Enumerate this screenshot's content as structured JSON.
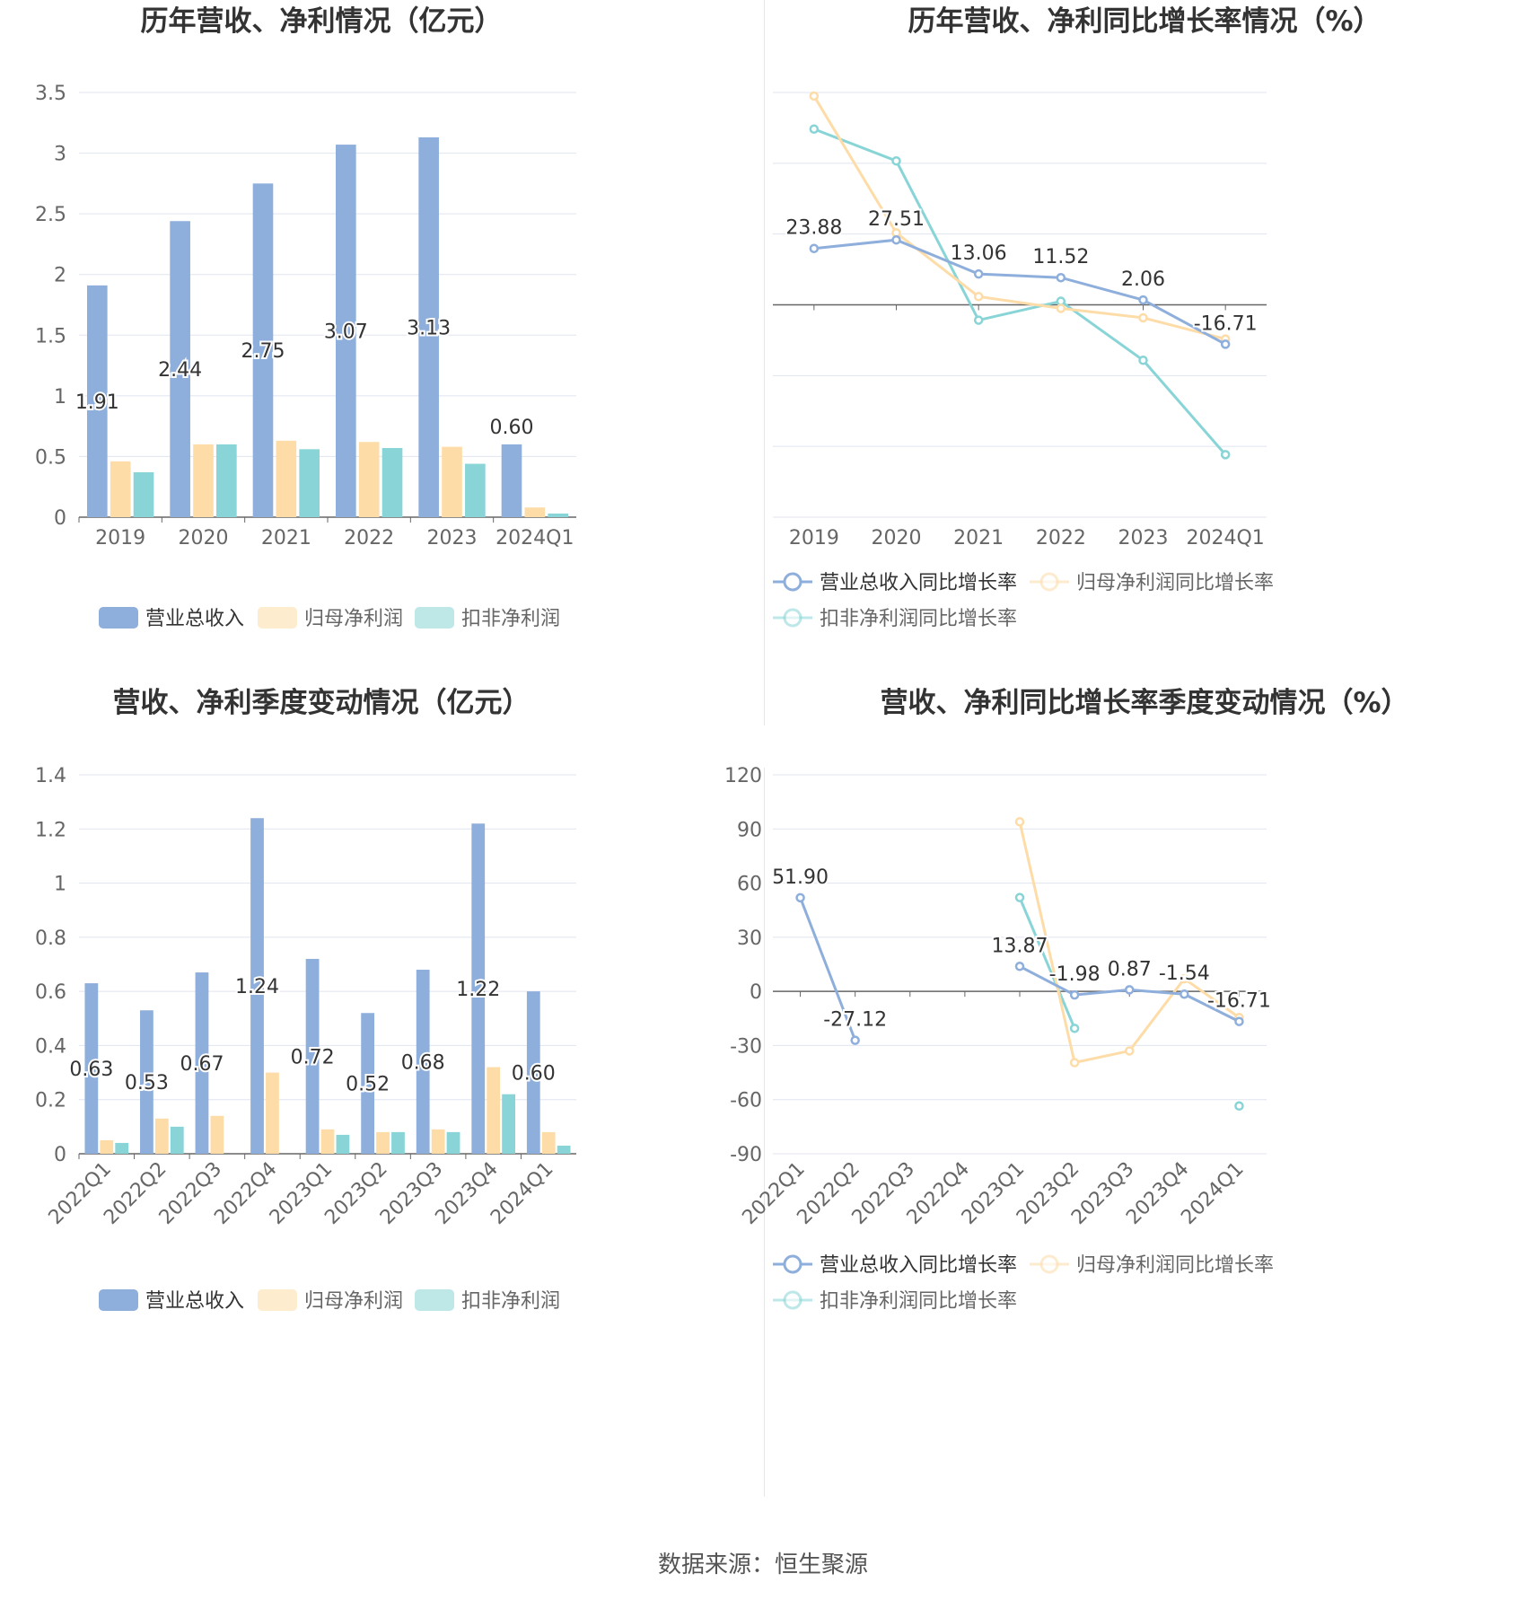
{
  "colors": {
    "revenue": "#8eaedc",
    "net_profit": "#fedca8",
    "deducted_profit": "#88d4d6",
    "grid": "#e0e4f0",
    "axis": "#666666",
    "text": "#666666",
    "title": "#333333",
    "label": "#333333"
  },
  "source": "数据来源：恒生聚源",
  "chart_data": [
    {
      "type": "bar",
      "title": "历年营收、净利情况（亿元）",
      "categories": [
        "2019",
        "2020",
        "2021",
        "2022",
        "2023",
        "2024Q1"
      ],
      "ylim": [
        0,
        3.5
      ],
      "yticks": [
        "0",
        "0.5",
        "1",
        "1.5",
        "2",
        "2.5",
        "3",
        "3.5"
      ],
      "series": [
        {
          "name": "营业总收入",
          "values": [
            1.91,
            2.44,
            2.75,
            3.07,
            3.13,
            0.6
          ],
          "labels": [
            "1.91",
            "2.44",
            "2.75",
            "3.07",
            "3.13",
            "0.60"
          ]
        },
        {
          "name": "归母净利润",
          "values": [
            0.46,
            0.6,
            0.63,
            0.62,
            0.58,
            0.08
          ]
        },
        {
          "name": "扣非净利润",
          "values": [
            0.37,
            0.6,
            0.56,
            0.57,
            0.44,
            0.03
          ]
        }
      ],
      "legend": "bottom",
      "grid": true
    },
    {
      "type": "line",
      "title": "历年营收、净利同比增长率情况（%）",
      "categories": [
        "2019",
        "2020",
        "2021",
        "2022",
        "2023",
        "2024Q1"
      ],
      "ylim": [
        -90,
        90
      ],
      "yticks": [
        "-90",
        "-60",
        "-30",
        "0",
        "30",
        "60",
        "90"
      ],
      "series": [
        {
          "name": "营业总收入同比增长率",
          "values": [
            23.88,
            27.51,
            13.06,
            11.52,
            2.06,
            -16.71
          ],
          "labels": [
            "23.88",
            "27.51",
            "13.06",
            "11.52",
            "2.06",
            "-16.71"
          ]
        },
        {
          "name": "归母净利润同比增长率",
          "values": [
            88.5,
            30.5,
            3.5,
            -1.5,
            -5.5,
            -14.5
          ]
        },
        {
          "name": "扣非净利润同比增长率",
          "values": [
            74.5,
            61.0,
            -6.5,
            1.5,
            -23.5,
            -63.5
          ]
        }
      ],
      "legend": "bottom",
      "grid": true
    },
    {
      "type": "bar",
      "title": "营收、净利季度变动情况（亿元）",
      "categories": [
        "2022Q1",
        "2022Q2",
        "2022Q3",
        "2022Q4",
        "2023Q1",
        "2023Q2",
        "2023Q3",
        "2023Q4",
        "2024Q1"
      ],
      "ylim": [
        0,
        1.4
      ],
      "yticks": [
        "0",
        "0.2",
        "0.4",
        "0.6",
        "0.8",
        "1",
        "1.2",
        "1.4"
      ],
      "series": [
        {
          "name": "营业总收入",
          "values": [
            0.63,
            0.53,
            0.67,
            1.24,
            0.72,
            0.52,
            0.68,
            1.22,
            0.6
          ],
          "labels": [
            "0.63",
            "0.53",
            "0.67",
            "1.24",
            "0.72",
            "0.52",
            "0.68",
            "1.22",
            "0.60"
          ]
        },
        {
          "name": "归母净利润",
          "values": [
            0.05,
            0.13,
            0.14,
            0.3,
            0.09,
            0.08,
            0.09,
            0.32,
            0.08
          ]
        },
        {
          "name": "扣非净利润",
          "values": [
            0.04,
            0.1,
            null,
            null,
            0.07,
            0.08,
            0.08,
            0.22,
            0.03
          ]
        }
      ],
      "legend": "bottom",
      "grid": true
    },
    {
      "type": "line",
      "title": "营收、净利同比增长率季度变动情况（%）",
      "categories": [
        "2022Q1",
        "2022Q2",
        "2022Q3",
        "2022Q4",
        "2023Q1",
        "2023Q2",
        "2023Q3",
        "2023Q4",
        "2024Q1"
      ],
      "ylim": [
        -90,
        120
      ],
      "yticks": [
        "-90",
        "-60",
        "-30",
        "0",
        "30",
        "60",
        "90",
        "120"
      ],
      "series": [
        {
          "name": "营业总收入同比增长率",
          "values": [
            51.9,
            -27.12,
            null,
            null,
            13.87,
            -1.98,
            0.87,
            -1.54,
            -16.71
          ],
          "labels": [
            "51.90",
            "-27.12",
            "",
            "",
            "13.87",
            "-1.98",
            "0.87",
            "-1.54",
            "-16.71"
          ]
        },
        {
          "name": "归母净利润同比增长率",
          "values": [
            null,
            null,
            null,
            null,
            94.0,
            -39.5,
            -33.0,
            7.0,
            -14.5
          ]
        },
        {
          "name": "扣非净利润同比增长率",
          "values": [
            null,
            null,
            null,
            null,
            52.0,
            -20.5,
            null,
            null,
            -63.5
          ]
        }
      ],
      "legend": "bottom",
      "grid": true
    }
  ]
}
